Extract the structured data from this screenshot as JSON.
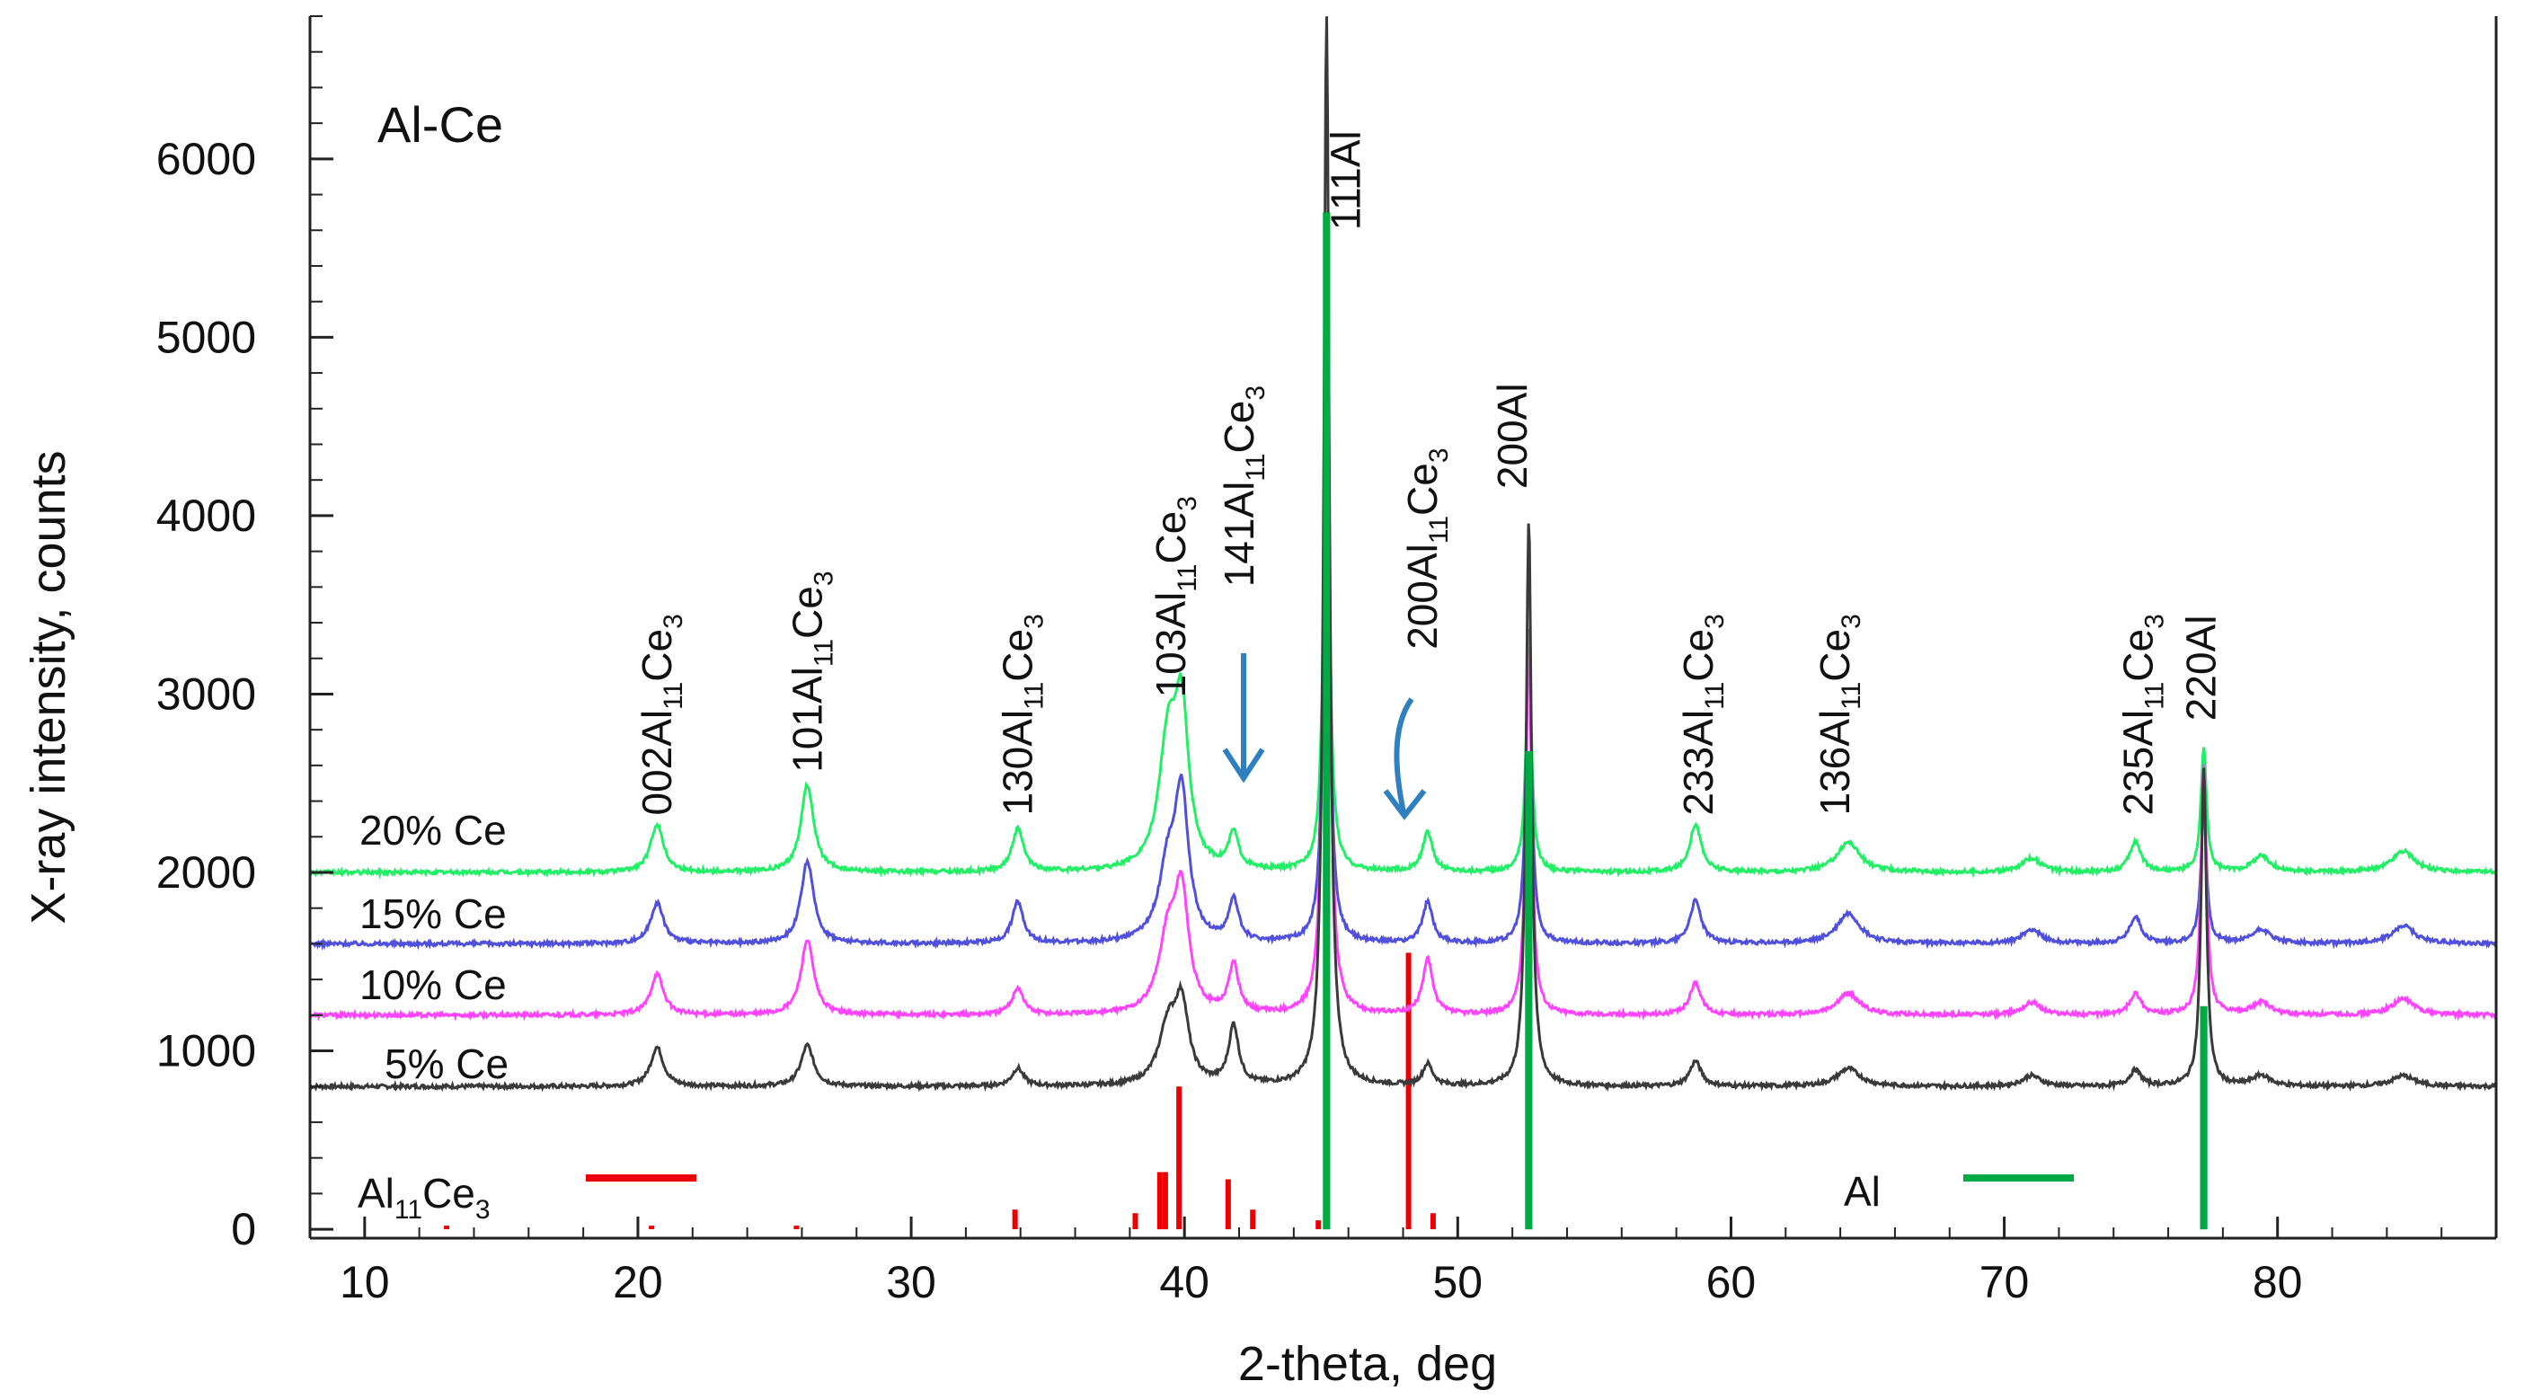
{
  "chart_data": {
    "type": "line",
    "title": "Al-Ce",
    "xlabel": "2-theta, deg",
    "ylabel": "X-ray intensity, counts",
    "xlim": [
      8,
      88
    ],
    "ylim": [
      -50,
      6800
    ],
    "x_ticks": [
      10,
      20,
      30,
      40,
      50,
      60,
      70,
      80
    ],
    "y_ticks": [
      0,
      1000,
      2000,
      3000,
      4000,
      5000,
      6000
    ],
    "grid": false,
    "series": [
      {
        "name": "5% Ce",
        "color": "#3a3a3a",
        "baseline": 800,
        "peaks": [
          [
            20.7,
            220,
            0.28
          ],
          [
            26.2,
            230,
            0.28
          ],
          [
            33.9,
            100,
            0.25
          ],
          [
            39.4,
            320,
            0.4
          ],
          [
            39.9,
            420,
            0.3
          ],
          [
            41.8,
            330,
            0.22
          ],
          [
            45.2,
            6000,
            0.12
          ],
          [
            48.9,
            120,
            0.22
          ],
          [
            52.6,
            3180,
            0.12
          ],
          [
            58.7,
            140,
            0.25
          ],
          [
            64.3,
            100,
            0.5
          ],
          [
            71,
            60,
            0.4
          ],
          [
            74.8,
            90,
            0.25
          ],
          [
            77.3,
            1780,
            0.12
          ],
          [
            79.4,
            60,
            0.4
          ],
          [
            84.6,
            60,
            0.5
          ]
        ]
      },
      {
        "name": "10% Ce",
        "color": "#ff44ff",
        "baseline": 1200,
        "peaks": [
          [
            20.7,
            230,
            0.28
          ],
          [
            26.2,
            420,
            0.28
          ],
          [
            33.9,
            150,
            0.25
          ],
          [
            39.4,
            420,
            0.4
          ],
          [
            39.9,
            630,
            0.3
          ],
          [
            41.8,
            270,
            0.22
          ],
          [
            45.2,
            4500,
            0.12
          ],
          [
            48.9,
            310,
            0.22
          ],
          [
            52.6,
            2180,
            0.12
          ],
          [
            58.7,
            180,
            0.25
          ],
          [
            64.3,
            120,
            0.5
          ],
          [
            71,
            70,
            0.4
          ],
          [
            74.8,
            120,
            0.25
          ],
          [
            77.3,
            1400,
            0.12
          ],
          [
            79.4,
            70,
            0.4
          ],
          [
            84.6,
            90,
            0.5
          ]
        ]
      },
      {
        "name": "15% Ce",
        "color": "#5050dd",
        "baseline": 1600,
        "peaks": [
          [
            20.7,
            230,
            0.28
          ],
          [
            26.2,
            460,
            0.28
          ],
          [
            33.9,
            230,
            0.25
          ],
          [
            39.4,
            400,
            0.4
          ],
          [
            39.9,
            780,
            0.3
          ],
          [
            41.8,
            230,
            0.22
          ],
          [
            45.2,
            3400,
            0.12
          ],
          [
            48.9,
            230,
            0.22
          ],
          [
            52.6,
            1780,
            0.12
          ],
          [
            58.7,
            240,
            0.25
          ],
          [
            64.3,
            170,
            0.5
          ],
          [
            71,
            80,
            0.4
          ],
          [
            74.8,
            150,
            0.25
          ],
          [
            77.3,
            780,
            0.12
          ],
          [
            79.4,
            80,
            0.4
          ],
          [
            84.6,
            100,
            0.5
          ]
        ]
      },
      {
        "name": "20% Ce",
        "color": "#22ee66",
        "baseline": 2000,
        "peaks": [
          [
            20.7,
            270,
            0.28
          ],
          [
            26.2,
            490,
            0.28
          ],
          [
            33.9,
            240,
            0.25
          ],
          [
            39.4,
            700,
            0.4
          ],
          [
            39.9,
            820,
            0.3
          ],
          [
            41.8,
            200,
            0.22
          ],
          [
            45.2,
            3000,
            0.12
          ],
          [
            48.9,
            220,
            0.22
          ],
          [
            52.6,
            1280,
            0.12
          ],
          [
            58.7,
            270,
            0.25
          ],
          [
            64.3,
            170,
            0.5
          ],
          [
            71,
            80,
            0.4
          ],
          [
            74.8,
            170,
            0.25
          ],
          [
            77.3,
            700,
            0.12
          ],
          [
            79.4,
            90,
            0.4
          ],
          [
            84.6,
            120,
            0.5
          ]
        ]
      }
    ],
    "reference_patterns": [
      {
        "name": "Al11Ce3",
        "color": "#ee0000",
        "sticks": [
          [
            13,
            20
          ],
          [
            20.5,
            20
          ],
          [
            25.8,
            20
          ],
          [
            33.8,
            110
          ],
          [
            38.2,
            90
          ],
          [
            39.1,
            320
          ],
          [
            39.3,
            320
          ],
          [
            39.8,
            800
          ],
          [
            41.6,
            280
          ],
          [
            42.5,
            110
          ],
          [
            44.9,
            50
          ],
          [
            48.2,
            1550
          ],
          [
            49.1,
            90
          ]
        ]
      },
      {
        "name": "Al",
        "color": "#00aa44",
        "sticks": [
          [
            45.2,
            5700
          ],
          [
            52.6,
            2680
          ],
          [
            77.3,
            1250
          ]
        ]
      }
    ],
    "legend": [
      {
        "name": "Al11Ce3",
        "color": "#ee0000",
        "text": "Al",
        "sub": "11",
        "text2": "Ce",
        "sub2": "3"
      },
      {
        "name": "Al",
        "color": "#00aa44",
        "text": "Al",
        "sub": "",
        "text2": "",
        "sub2": ""
      }
    ],
    "annotations": [
      {
        "id": "002",
        "x": 20.7,
        "y": 2320,
        "prefix": "002Al",
        "sub": "11",
        "mid": "Ce",
        "sub2": "3"
      },
      {
        "id": "101",
        "x": 26.2,
        "y": 2560,
        "prefix": "101Al",
        "sub": "11",
        "mid": "Ce",
        "sub2": "3"
      },
      {
        "id": "130",
        "x": 33.9,
        "y": 2320,
        "prefix": "130Al",
        "sub": "11",
        "mid": "Ce",
        "sub2": "3"
      },
      {
        "id": "103",
        "x": 39.5,
        "y": 2980,
        "prefix": "103Al",
        "sub": "11",
        "mid": "Ce",
        "sub2": "3"
      },
      {
        "id": "141",
        "x": 42.0,
        "y": 3600,
        "prefix": "141Al",
        "sub": "11",
        "mid": "Ce",
        "sub2": "3"
      },
      {
        "id": "111",
        "x": 45.9,
        "y": 5600,
        "prefix": "111Al",
        "sub": "",
        "mid": "",
        "sub2": ""
      },
      {
        "id": "200c",
        "x": 48.7,
        "y": 3250,
        "prefix": "200Al",
        "sub": "11",
        "mid": "Ce",
        "sub2": "3"
      },
      {
        "id": "200a",
        "x": 52.0,
        "y": 4150,
        "prefix": "200Al",
        "sub": "",
        "mid": "",
        "sub2": ""
      },
      {
        "id": "233",
        "x": 58.8,
        "y": 2320,
        "prefix": "233Al",
        "sub": "11",
        "mid": "Ce",
        "sub2": "3"
      },
      {
        "id": "136",
        "x": 63.8,
        "y": 2320,
        "prefix": "136Al",
        "sub": "11",
        "mid": "Ce",
        "sub2": "3"
      },
      {
        "id": "235",
        "x": 74.9,
        "y": 2320,
        "prefix": "235Al",
        "sub": "11",
        "mid": "Ce",
        "sub2": "3"
      },
      {
        "id": "220",
        "x": 77.2,
        "y": 2850,
        "prefix": "220Al",
        "sub": "",
        "mid": "",
        "sub2": ""
      }
    ],
    "arrows": [
      {
        "name": "arrow-141",
        "color": "#2f80c0"
      },
      {
        "name": "arrow-200",
        "color": "#2f80c0"
      }
    ]
  }
}
